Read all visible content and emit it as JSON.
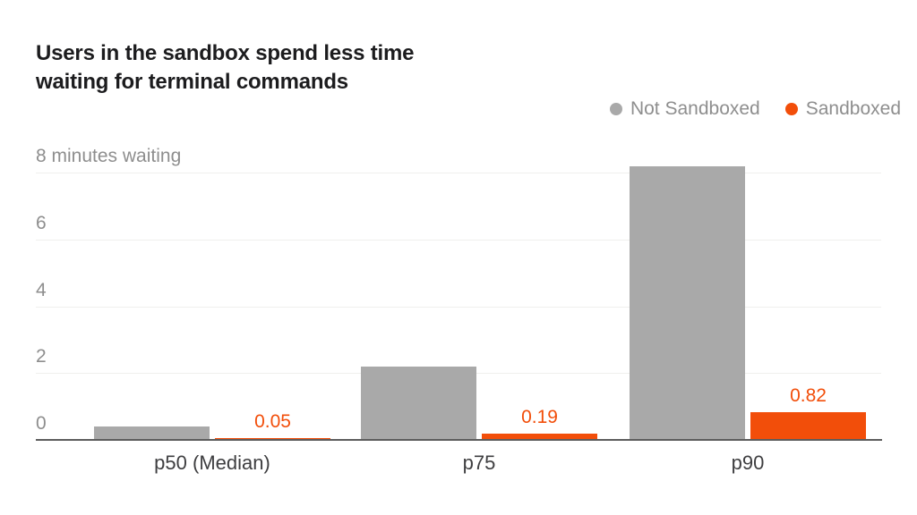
{
  "title": {
    "line1": "Users in the sandbox spend less time",
    "line2": "waiting for terminal commands"
  },
  "legend": {
    "items": [
      {
        "label": "Not Sandboxed",
        "color": "#a9a9a9"
      },
      {
        "label": "Sandboxed",
        "color": "#f24e0a"
      }
    ]
  },
  "chart_data": {
    "type": "bar",
    "title": "Users in the sandbox spend less time waiting for terminal commands",
    "categories": [
      "p50 (Median)",
      "p75",
      "p90"
    ],
    "series": [
      {
        "name": "Not Sandboxed",
        "color": "#a9a9a9",
        "values": [
          0.4,
          2.2,
          8.2
        ],
        "value_labels": [
          "",
          "",
          ""
        ]
      },
      {
        "name": "Sandboxed",
        "color": "#f24e0a",
        "values": [
          0.05,
          0.19,
          0.82
        ],
        "value_labels": [
          "0.05",
          "0.19",
          "0.82"
        ]
      }
    ],
    "xlabel": "",
    "ylabel": "minutes waiting",
    "yticks": [
      0,
      2,
      4,
      6,
      8
    ],
    "ytick_labels": [
      "0",
      "2",
      "4",
      "6",
      "8 minutes waiting"
    ],
    "ylim": [
      0,
      8.2
    ],
    "grid": true,
    "legend_position": "top-right",
    "value_label_color": "#f24e0a"
  },
  "colors": {
    "background": "#ffffff",
    "title_text": "#1c1c1e",
    "legend_text": "#8e8e8e",
    "tick_text": "#8e8e8e",
    "category_text": "#3e3e40",
    "gridline": "#efefed",
    "axis_line": "#5c5c5c",
    "not_sandboxed": "#a9a9a9",
    "sandboxed": "#f24e0a"
  }
}
